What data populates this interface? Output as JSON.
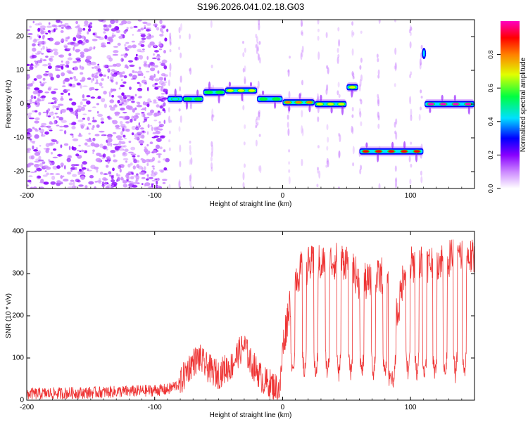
{
  "figure_title": "S196.2026.041.02.18.G03",
  "chart_data": [
    {
      "type": "heatmap",
      "title": "S196.2026.041.02.18.G03",
      "xlabel": "Height of straight line (km)",
      "ylabel": "Frequency (Hz)",
      "xlim": [
        -200,
        150
      ],
      "ylim": [
        -25,
        25
      ],
      "xticks": [
        -200,
        -100,
        0,
        100
      ],
      "yticks": [
        -20,
        -10,
        0,
        10,
        20
      ],
      "grid": false,
      "colorbar": {
        "label": "Normalized spectral amplitude",
        "range": [
          0.0,
          1.0
        ],
        "ticks": [
          "0.0",
          "0.2",
          "0.4",
          "0.6",
          "0.8"
        ],
        "colors": [
          "#ffffff",
          "#cc88ff",
          "#8800ff",
          "#0000ff",
          "#00e0ff",
          "#00ff40",
          "#e0ff00",
          "#ff8000",
          "#ff0000",
          "#ff00c0"
        ]
      },
      "noise_region_x": [
        -200,
        -90
      ],
      "tone_segments": [
        {
          "x_start": -90,
          "x_end": -78,
          "freq": 1.5,
          "amplitude": 0.45
        },
        {
          "x_start": -78,
          "x_end": -62,
          "freq": 1.5,
          "amplitude": 0.5
        },
        {
          "x_start": -62,
          "x_end": -45,
          "freq": 3.5,
          "amplitude": 0.6
        },
        {
          "x_start": -45,
          "x_end": -20,
          "freq": 4.0,
          "amplitude": 0.7
        },
        {
          "x_start": -20,
          "x_end": 0,
          "freq": 1.5,
          "amplitude": 0.55
        },
        {
          "x_start": 0,
          "x_end": 25,
          "freq": 0.5,
          "amplitude": 0.75
        },
        {
          "x_start": 25,
          "x_end": 50,
          "freq": 0.0,
          "amplitude": 0.7
        },
        {
          "x_start": 50,
          "x_end": 59,
          "freq": 5.0,
          "amplitude": 0.65
        },
        {
          "x_start": 60,
          "x_end": 110,
          "freq": -14.0,
          "amplitude": 0.9
        },
        {
          "x_start": 111,
          "x_end": 150,
          "freq": 0.0,
          "amplitude": 0.95
        }
      ]
    },
    {
      "type": "line",
      "xlabel": "Height of straight line (km)",
      "ylabel": "SNR (10 * v/v)",
      "xlim": [
        -200,
        150
      ],
      "ylim": [
        0,
        400
      ],
      "xticks": [
        -200,
        -100,
        0,
        100
      ],
      "yticks": [
        0,
        100,
        200,
        300,
        400
      ],
      "grid": false,
      "series": [
        {
          "name": "SNR",
          "color": "#ee3333",
          "x": [
            -200,
            -150,
            -110,
            -90,
            -80,
            -75,
            -70,
            -65,
            -60,
            -55,
            -50,
            -45,
            -40,
            -35,
            -30,
            -25,
            -20,
            -15,
            -10,
            -5,
            -2,
            0,
            3,
            5,
            8,
            10,
            15,
            20,
            30,
            40,
            50,
            55,
            60,
            70,
            80,
            85,
            90,
            95,
            100,
            105,
            110,
            120,
            130,
            140,
            150
          ],
          "values": [
            15,
            18,
            22,
            25,
            40,
            70,
            90,
            100,
            80,
            70,
            60,
            75,
            80,
            110,
            130,
            90,
            70,
            45,
            40,
            30,
            25,
            120,
            180,
            220,
            270,
            290,
            310,
            320,
            325,
            330,
            330,
            310,
            280,
            280,
            300,
            230,
            200,
            310,
            320,
            325,
            320,
            330,
            335,
            345,
            335
          ]
        }
      ],
      "dip_positions_x": [
        8,
        17,
        26,
        35,
        44,
        53,
        62,
        71,
        80,
        87,
        98,
        105,
        111,
        119,
        127,
        135,
        142
      ]
    }
  ]
}
